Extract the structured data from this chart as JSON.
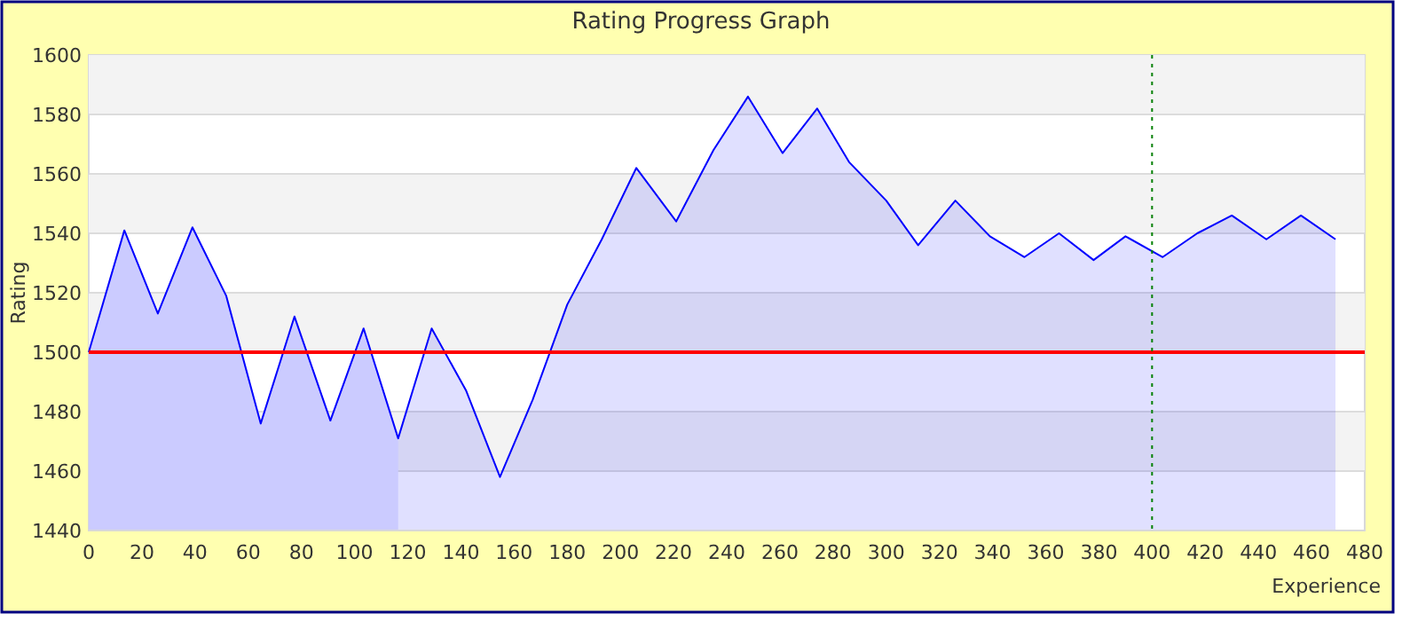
{
  "chart_data": {
    "type": "area",
    "title": "Rating Progress Graph",
    "xlabel": "Experience",
    "ylabel": "Rating",
    "x": [
      0,
      13.4,
      26,
      39,
      51.7,
      64.7,
      77.4,
      90.9,
      103.4,
      116.4,
      129,
      142,
      154.7,
      167,
      180,
      193,
      206,
      221,
      235,
      248,
      261,
      274,
      286,
      300,
      312,
      326,
      339,
      352,
      365,
      378,
      390,
      404,
      417,
      430,
      443,
      456,
      469
    ],
    "series": [
      {
        "color": "#0000ff",
        "values": [
          1500,
          1541,
          1513,
          1542,
          1519,
          1476,
          1512,
          1477,
          1508,
          1471,
          1508,
          1487,
          1458,
          1484,
          1516,
          1538,
          1562,
          1544,
          1568,
          1586,
          1567,
          1582,
          1564,
          1551,
          1536,
          1551,
          1539,
          1532,
          1540,
          1531,
          1539,
          1532,
          1540,
          1546,
          1538,
          1546,
          1538
        ]
      }
    ],
    "xlim": [
      0,
      480
    ],
    "xticks": [
      0,
      20,
      40,
      60,
      80,
      100,
      120,
      140,
      160,
      180,
      200,
      220,
      240,
      260,
      280,
      300,
      320,
      340,
      360,
      380,
      400,
      420,
      440,
      460,
      480
    ],
    "ylim": [
      1440,
      1600
    ],
    "yticks": [
      1440,
      1460,
      1480,
      1500,
      1520,
      1540,
      1560,
      1580,
      1600
    ],
    "grid": "y",
    "ref_lines": [
      {
        "axis": "y",
        "value": 1500,
        "color": "#ff0000",
        "line_style": "solid"
      },
      {
        "axis": "x",
        "value": 400,
        "color": "#008000",
        "line_style": "dotted"
      }
    ],
    "bands": [
      {
        "axis": "x",
        "from": 0,
        "to": 116.4,
        "color": "#e8e8ff"
      }
    ]
  }
}
